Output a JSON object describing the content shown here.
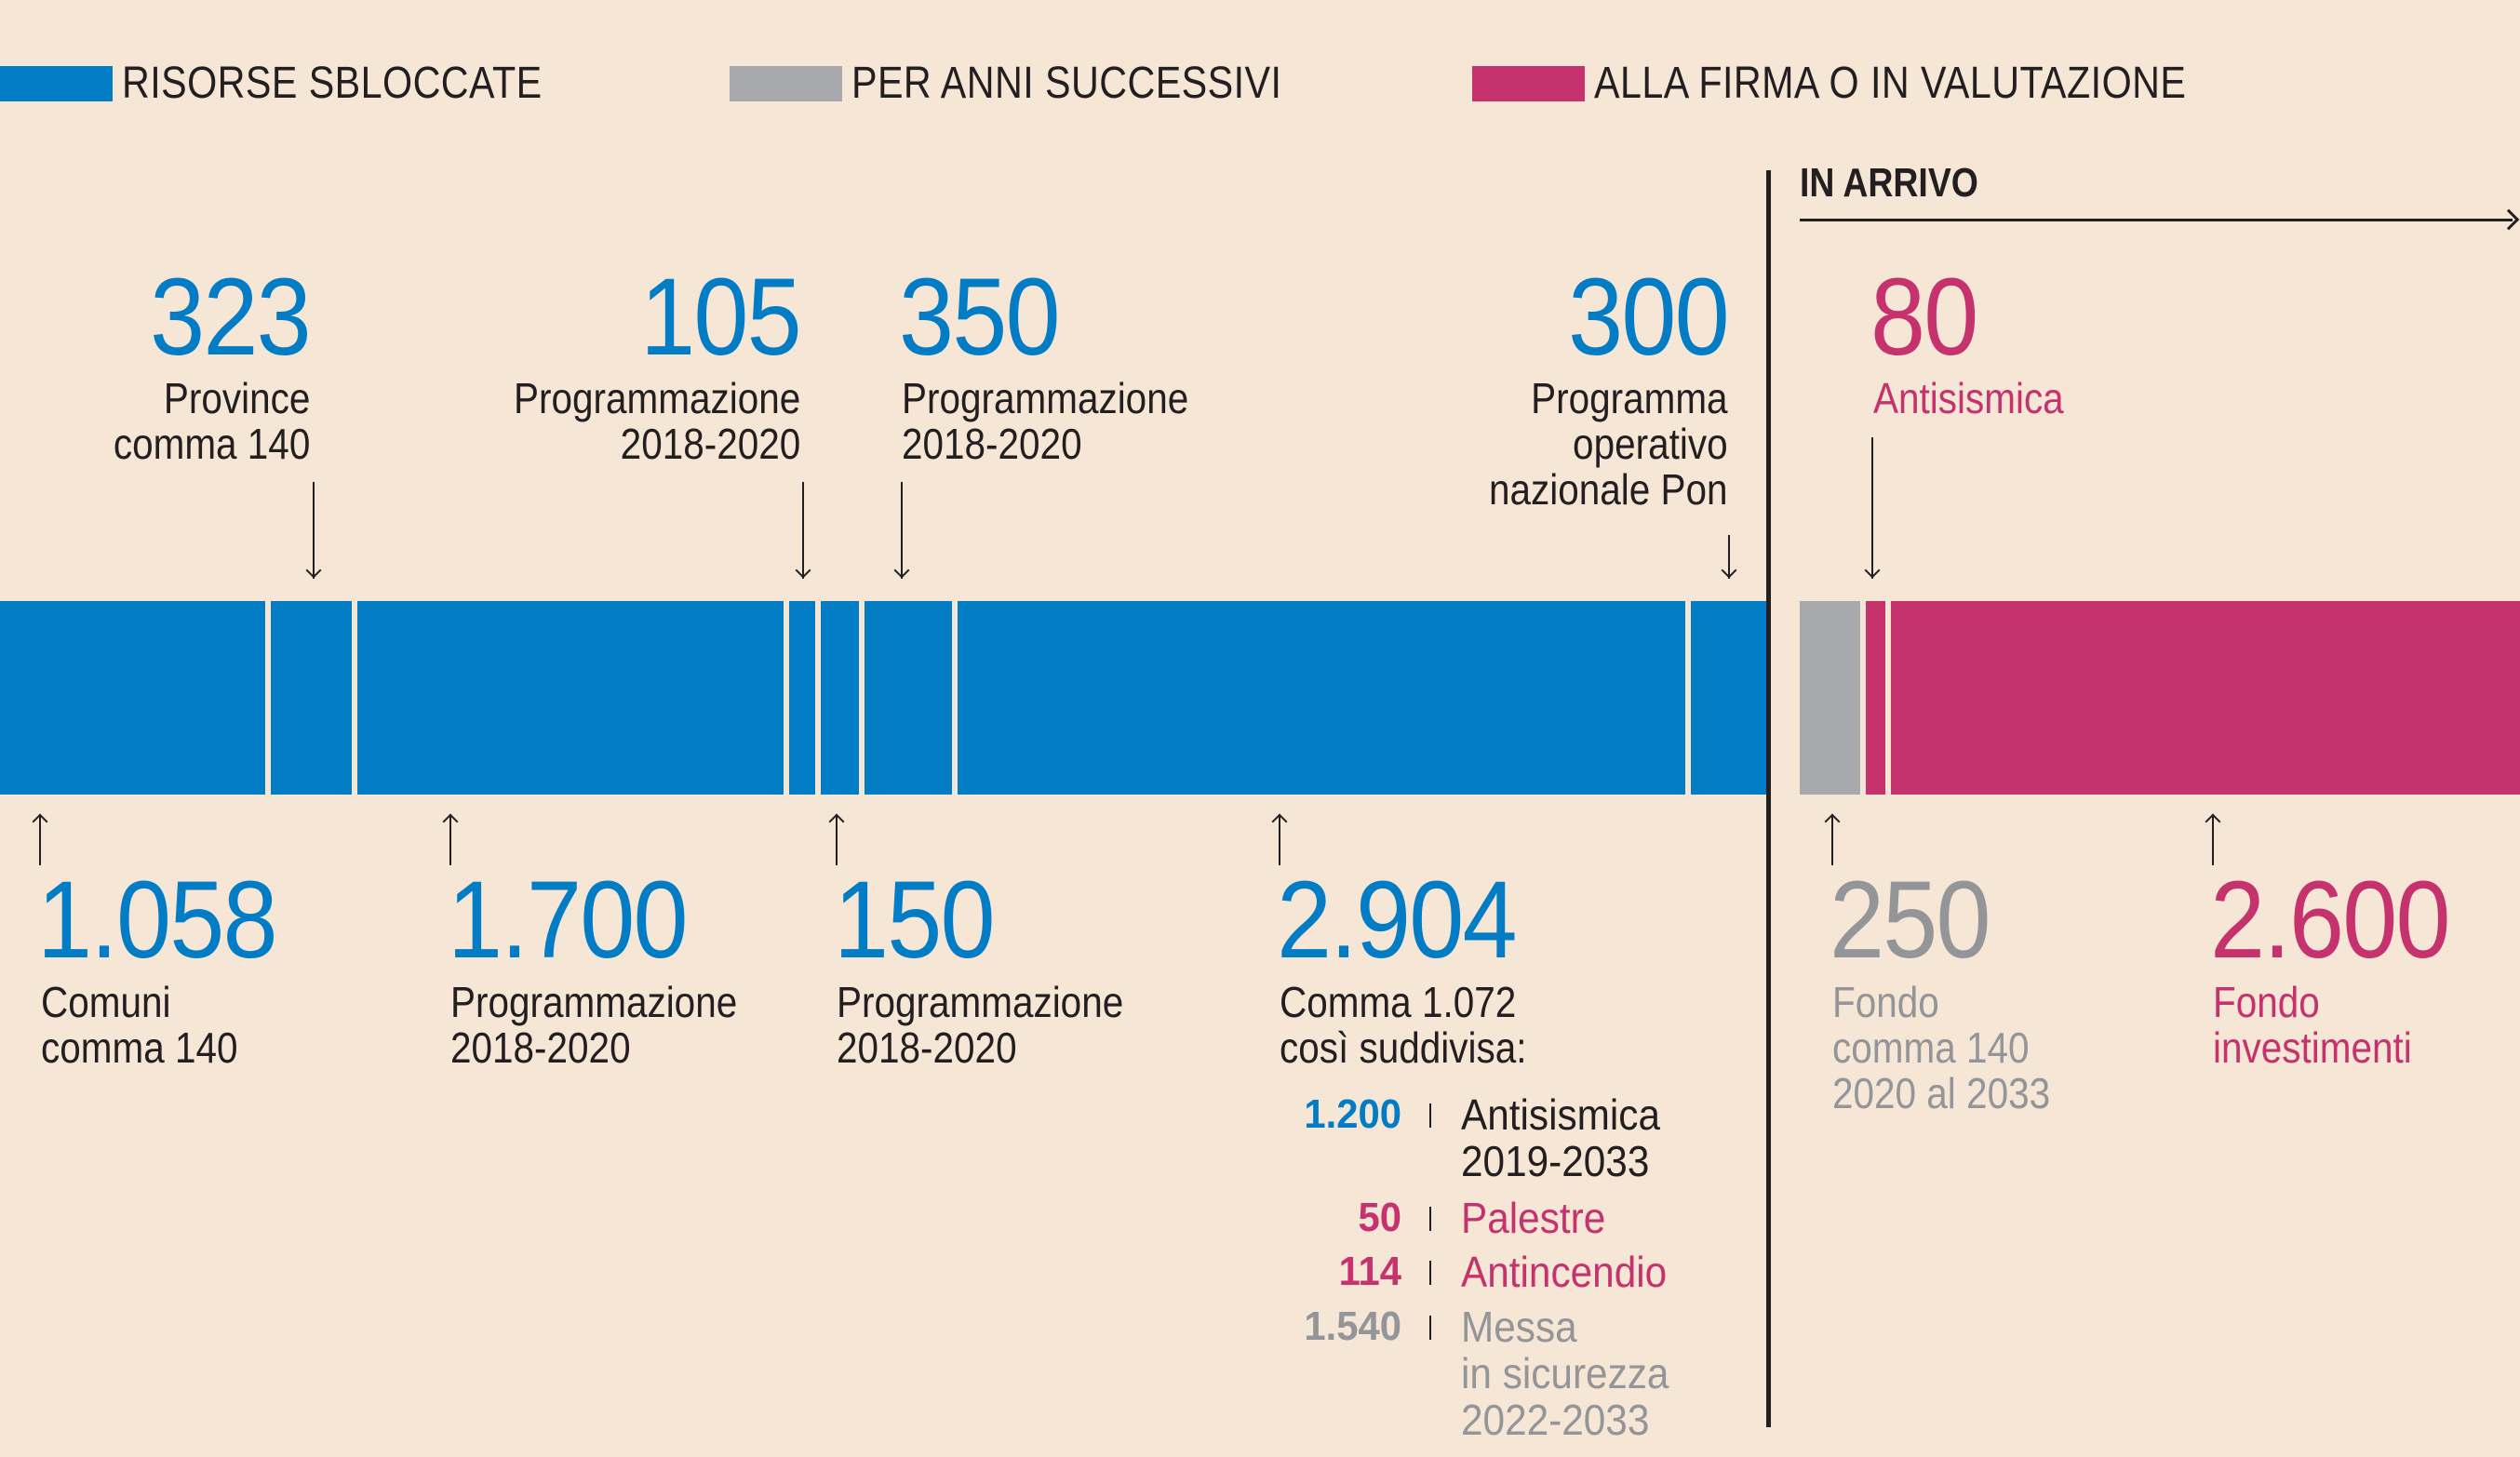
{
  "colors": {
    "background": "#f5e6d6",
    "blue": "#027cc4",
    "grey": "#a7a9ac",
    "grey_text": "#939598",
    "pink": "#c5326e",
    "dark": "#231f20"
  },
  "legend": [
    {
      "label": "RISORSE SBLOCCATE",
      "color": "#027cc4"
    },
    {
      "label": "PER ANNI SUCCESSIVI",
      "color": "#a7a9ac"
    },
    {
      "label": "ALLA FIRMA O IN VALUTAZIONE",
      "color": "#c5326e"
    }
  ],
  "in_arrivo_label": "IN ARRIVO",
  "chart_data": {
    "type": "bar",
    "subtype": "stacked-horizontal-single-bar",
    "title": "",
    "units": "milioni di euro",
    "sections": [
      {
        "name": "Risorse sbloccate",
        "color": "#027cc4"
      },
      {
        "name": "In arrivo",
        "color": "mixed"
      }
    ],
    "segments": [
      {
        "value": 1058,
        "value_label": "1.058",
        "label": "Comuni\ncomma 140",
        "category": "RISORSE SBLOCCATE",
        "annotation": "below"
      },
      {
        "value": 323,
        "value_label": "323",
        "label": "Province\ncomma 140",
        "category": "RISORSE SBLOCCATE",
        "annotation": "above"
      },
      {
        "value": 1700,
        "value_label": "1.700",
        "label": "Programmazione\n2018-2020",
        "category": "RISORSE SBLOCCATE",
        "annotation": "below"
      },
      {
        "value": 105,
        "value_label": "105",
        "label": "Programmazione\n2018-2020",
        "category": "RISORSE SBLOCCATE",
        "annotation": "above"
      },
      {
        "value": 150,
        "value_label": "150",
        "label": "Programmazione\n2018-2020",
        "category": "RISORSE SBLOCCATE",
        "annotation": "below"
      },
      {
        "value": 350,
        "value_label": "350",
        "label": "Programmazione\n2018-2020",
        "category": "RISORSE SBLOCCATE",
        "annotation": "above"
      },
      {
        "value": 2904,
        "value_label": "2.904",
        "label": "Comma 1.072\ncosì suddivisa:",
        "category": "RISORSE SBLOCCATE",
        "annotation": "below"
      },
      {
        "value": 300,
        "value_label": "300",
        "label": "Programma\noperativo\nnazionale Pon",
        "category": "RISORSE SBLOCCATE",
        "annotation": "above"
      },
      {
        "value": 250,
        "value_label": "250",
        "label": "Fondo\ncomma 140\n2020 al 2033",
        "category": "PER ANNI SUCCESSIVI",
        "annotation": "below"
      },
      {
        "value": 80,
        "value_label": "80",
        "label": "Antisismica",
        "category": "ALLA FIRMA O IN VALUTAZIONE",
        "annotation": "above"
      },
      {
        "value": 2600,
        "value_label": "2.600",
        "label": "Fondo\ninvestimenti",
        "category": "ALLA FIRMA O IN VALUTAZIONE",
        "annotation": "below"
      }
    ],
    "breakdown_2904": [
      {
        "value": 1200,
        "value_label": "1.200",
        "label": "Antisismica\n2019-2033",
        "color": "#027cc4",
        "text_color": "#231f20"
      },
      {
        "value": 50,
        "value_label": "50",
        "label": "Palestre",
        "color": "#c5326e",
        "text_color": "#c5326e"
      },
      {
        "value": 114,
        "value_label": "114",
        "label": "Antincendio",
        "color": "#c5326e",
        "text_color": "#c5326e"
      },
      {
        "value": 1540,
        "value_label": "1.540",
        "label": "Messa\nin sicurezza\n2022-2033",
        "color": "#939598",
        "text_color": "#939598"
      }
    ]
  }
}
